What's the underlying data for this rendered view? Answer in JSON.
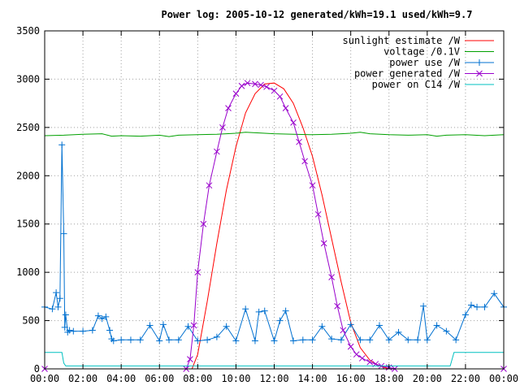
{
  "chart_data": {
    "type": "line",
    "title": "Power log: 2005-10-12 generated/kWh=19.1 used/kWh=9.7",
    "xlabel": "",
    "ylabel": "",
    "xlim": [
      0,
      24
    ],
    "ylim": [
      0,
      3500
    ],
    "x_ticks": [
      0,
      2,
      4,
      6,
      8,
      10,
      12,
      14,
      16,
      18,
      20,
      22,
      24
    ],
    "x_tick_labels": [
      "00:00",
      "02:00",
      "04:00",
      "06:00",
      "08:00",
      "10:00",
      "12:00",
      "14:00",
      "16:00",
      "18:00",
      "20:00",
      "22:00",
      "00:00"
    ],
    "y_ticks": [
      0,
      500,
      1000,
      1500,
      2000,
      2500,
      3000,
      3500
    ],
    "y_tick_labels": [
      "0",
      "500",
      "1000",
      "1500",
      "2000",
      "2500",
      "3000",
      "3500"
    ],
    "grid": true,
    "legend_position": "top-right",
    "series": [
      {
        "name": "sunlight estimate /W",
        "color": "#ff0000",
        "marker": "none",
        "x": [
          0,
          7.7,
          8.0,
          8.5,
          9.0,
          9.5,
          10.0,
          10.5,
          11.0,
          11.5,
          12.0,
          12.5,
          13.0,
          13.5,
          14.0,
          14.5,
          15.0,
          15.5,
          16.0,
          16.5,
          17.0,
          17.5,
          18.0,
          24
        ],
        "y": [
          0,
          0,
          150,
          700,
          1300,
          1850,
          2300,
          2650,
          2850,
          2950,
          2960,
          2900,
          2750,
          2500,
          2200,
          1800,
          1350,
          900,
          480,
          220,
          90,
          30,
          0,
          0
        ]
      },
      {
        "name": "voltage /0.1V",
        "color": "#00a000",
        "marker": "none",
        "x": [
          0,
          1,
          2,
          3,
          3.5,
          4,
          5,
          6,
          6.5,
          7,
          8,
          9,
          10,
          10.5,
          11,
          12,
          13,
          14,
          15,
          16,
          16.5,
          17,
          18,
          19,
          20,
          20.5,
          21,
          22,
          23,
          24
        ],
        "y": [
          2415,
          2420,
          2430,
          2435,
          2410,
          2415,
          2410,
          2420,
          2405,
          2420,
          2425,
          2430,
          2440,
          2450,
          2445,
          2435,
          2430,
          2425,
          2430,
          2440,
          2450,
          2435,
          2425,
          2420,
          2425,
          2410,
          2420,
          2425,
          2415,
          2425
        ]
      },
      {
        "name": "power use /W",
        "color": "#0070d0",
        "marker": "plus",
        "x": [
          0,
          0.4,
          0.6,
          0.7,
          0.8,
          0.9,
          1.0,
          1.05,
          1.1,
          1.2,
          1.3,
          1.5,
          2.0,
          2.5,
          2.8,
          3.0,
          3.2,
          3.4,
          3.5,
          3.6,
          4.0,
          4.5,
          5.0,
          5.5,
          6.0,
          6.2,
          6.5,
          7.0,
          7.5,
          8.0,
          8.5,
          9.0,
          9.5,
          10.0,
          10.5,
          11.0,
          11.2,
          11.5,
          12.0,
          12.3,
          12.6,
          13.0,
          13.5,
          14.0,
          14.5,
          15.0,
          15.5,
          16.0,
          16.5,
          17.0,
          17.5,
          18.0,
          18.5,
          19.0,
          19.5,
          19.8,
          20.0,
          20.5,
          21.0,
          21.5,
          22.0,
          22.3,
          22.6,
          23.0,
          23.5,
          24.0
        ],
        "y": [
          640,
          620,
          790,
          640,
          730,
          2320,
          1400,
          430,
          560,
          380,
          400,
          390,
          390,
          400,
          550,
          520,
          540,
          400,
          310,
          290,
          300,
          300,
          300,
          450,
          290,
          460,
          300,
          300,
          440,
          290,
          300,
          330,
          440,
          290,
          620,
          290,
          590,
          600,
          290,
          500,
          600,
          290,
          300,
          300,
          440,
          310,
          300,
          460,
          300,
          300,
          450,
          300,
          380,
          300,
          300,
          650,
          300,
          450,
          390,
          300,
          560,
          660,
          640,
          640,
          780,
          640
        ]
      },
      {
        "name": "power generated /W",
        "color": "#9900cc",
        "marker": "x",
        "x": [
          0,
          7.4,
          7.6,
          7.8,
          8.0,
          8.3,
          8.6,
          9.0,
          9.3,
          9.6,
          10.0,
          10.3,
          10.6,
          11.0,
          11.3,
          11.6,
          12.0,
          12.3,
          12.6,
          13.0,
          13.3,
          13.6,
          14.0,
          14.3,
          14.6,
          15.0,
          15.3,
          15.6,
          16.0,
          16.3,
          16.6,
          17.0,
          17.3,
          17.6,
          18.0,
          18.3,
          24
        ],
        "y": [
          0,
          0,
          100,
          450,
          1000,
          1500,
          1900,
          2250,
          2500,
          2700,
          2850,
          2930,
          2960,
          2950,
          2940,
          2920,
          2880,
          2820,
          2700,
          2550,
          2350,
          2150,
          1900,
          1600,
          1300,
          950,
          650,
          400,
          230,
          150,
          110,
          70,
          50,
          30,
          15,
          0,
          0
        ]
      },
      {
        "name": "power on C14 /W",
        "color": "#00c0c0",
        "marker": "none",
        "x": [
          0,
          0.9,
          1.0,
          1.1,
          8.0,
          16.0,
          18.0,
          21.2,
          21.4,
          24.0
        ],
        "y": [
          170,
          170,
          60,
          30,
          30,
          30,
          30,
          30,
          170,
          170
        ]
      }
    ]
  }
}
